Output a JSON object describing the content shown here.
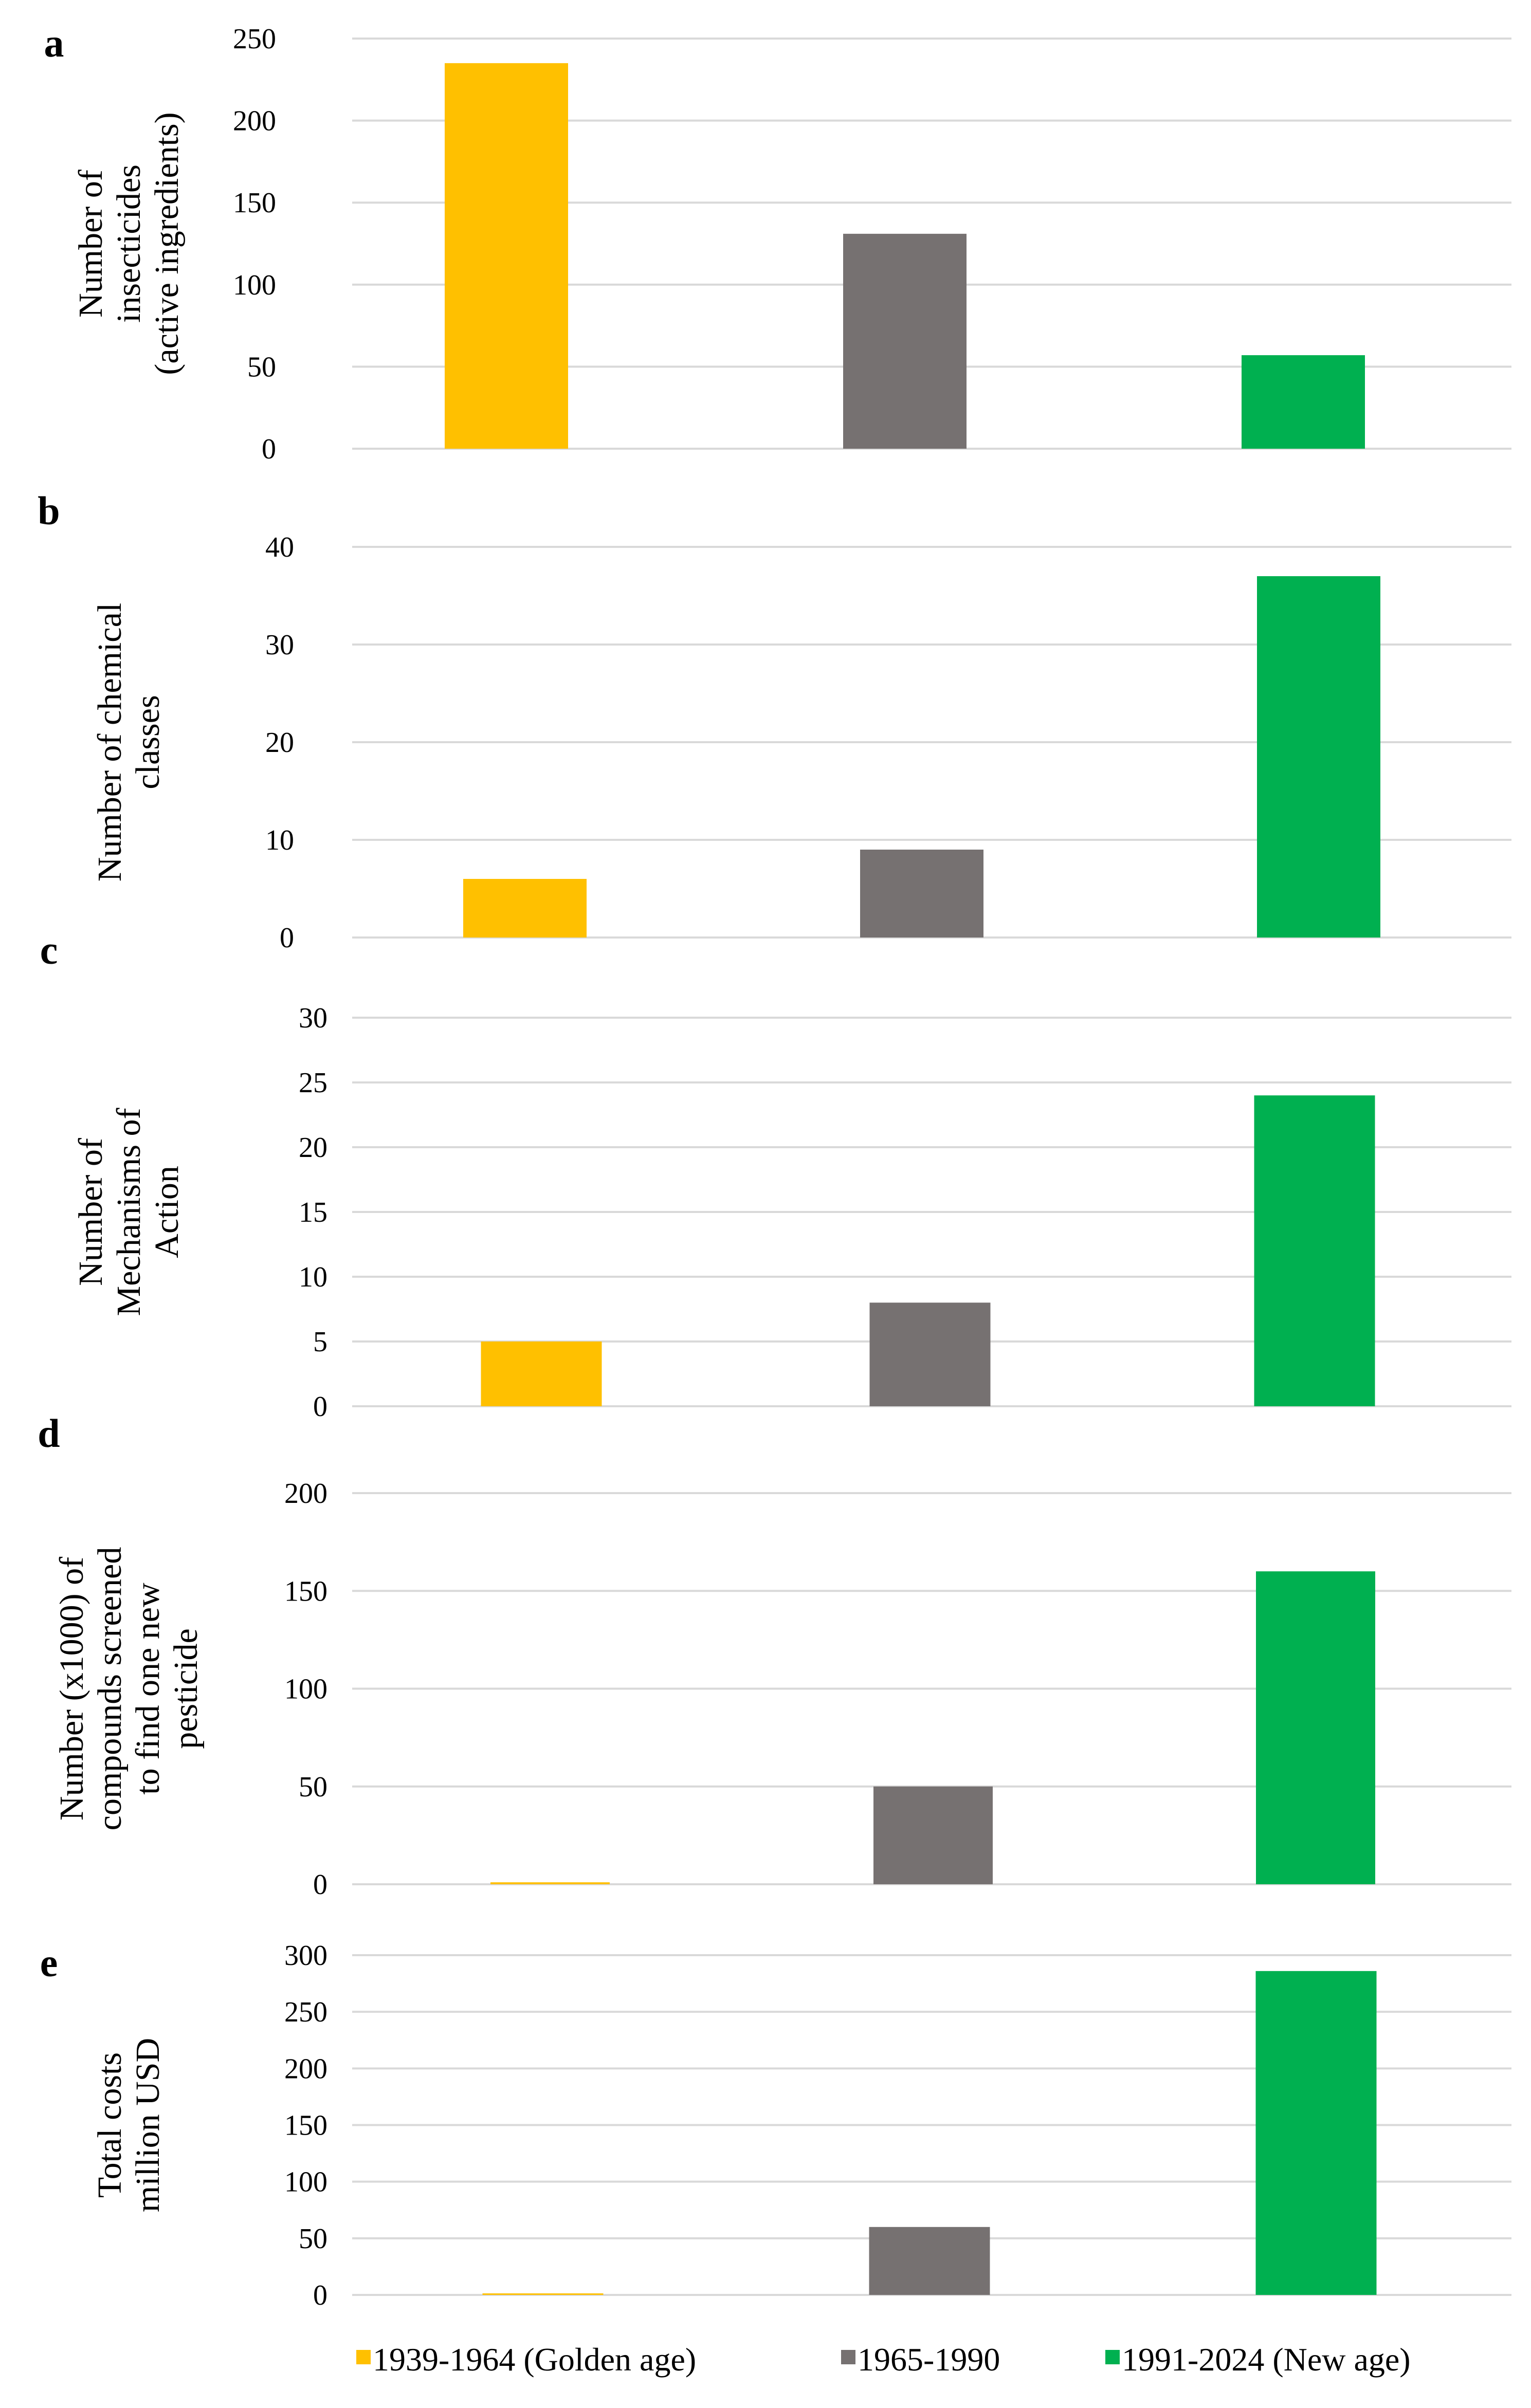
{
  "legend": [
    {
      "label": "1939-1964 (Golden age)",
      "color": "#FFC000"
    },
    {
      "label": "1965-1990",
      "color": "#767171"
    },
    {
      "label": "1991-2024 (New age)",
      "color": "#00B050"
    }
  ],
  "chart_data": [
    {
      "panel": "a",
      "type": "bar",
      "categories": [
        "1939-1964 (Golden age)",
        "1965-1990",
        "1991-2024 (New age)"
      ],
      "values": [
        235,
        131,
        57
      ],
      "ylabel_lines": [
        "Number of",
        "insecticides",
        "(active ingredients)"
      ],
      "ylim": [
        0,
        250
      ],
      "yticks": [
        "0",
        "50",
        "100",
        "150",
        "200",
        "250"
      ],
      "grid": true
    },
    {
      "panel": "b",
      "type": "bar",
      "categories": [
        "1939-1964 (Golden age)",
        "1965-1990",
        "1991-2024 (New age)"
      ],
      "values": [
        6,
        9,
        37
      ],
      "ylabel_lines": [
        "Number of chemical",
        "classes"
      ],
      "ylim": [
        0,
        40
      ],
      "yticks": [
        "0",
        "10",
        "20",
        "30",
        "40"
      ],
      "grid": true
    },
    {
      "panel": "c",
      "type": "bar",
      "categories": [
        "1939-1964 (Golden age)",
        "1965-1990",
        "1991-2024 (New age)"
      ],
      "values": [
        5,
        8,
        24
      ],
      "ylabel_lines": [
        "Number of",
        "Mechanisms of",
        "Action"
      ],
      "ylim": [
        0,
        30
      ],
      "yticks": [
        "0",
        "5",
        "10",
        "15",
        "20",
        "25",
        "30"
      ],
      "grid": true
    },
    {
      "panel": "d",
      "type": "bar",
      "categories": [
        "1939-1964 (Golden age)",
        "1965-1990",
        "1991-2024 (New age)"
      ],
      "values": [
        1,
        50,
        160
      ],
      "ylabel_lines": [
        "Number (x1000) of",
        "compounds screened",
        "to find one new",
        "pesticide"
      ],
      "ylim": [
        0,
        200
      ],
      "yticks": [
        "0",
        "50",
        "100",
        "150",
        "200"
      ],
      "grid": true
    },
    {
      "panel": "e",
      "type": "bar",
      "categories": [
        "1939-1964 (Golden age)",
        "1965-1990",
        "1991-2024 (New age)"
      ],
      "values": [
        1.2,
        60,
        286
      ],
      "ylabel_lines": [
        "Total costs",
        "million USD"
      ],
      "ylim": [
        0,
        300
      ],
      "yticks": [
        "0",
        "50",
        "100",
        "150",
        "200",
        "250",
        "300"
      ],
      "grid": true
    }
  ]
}
